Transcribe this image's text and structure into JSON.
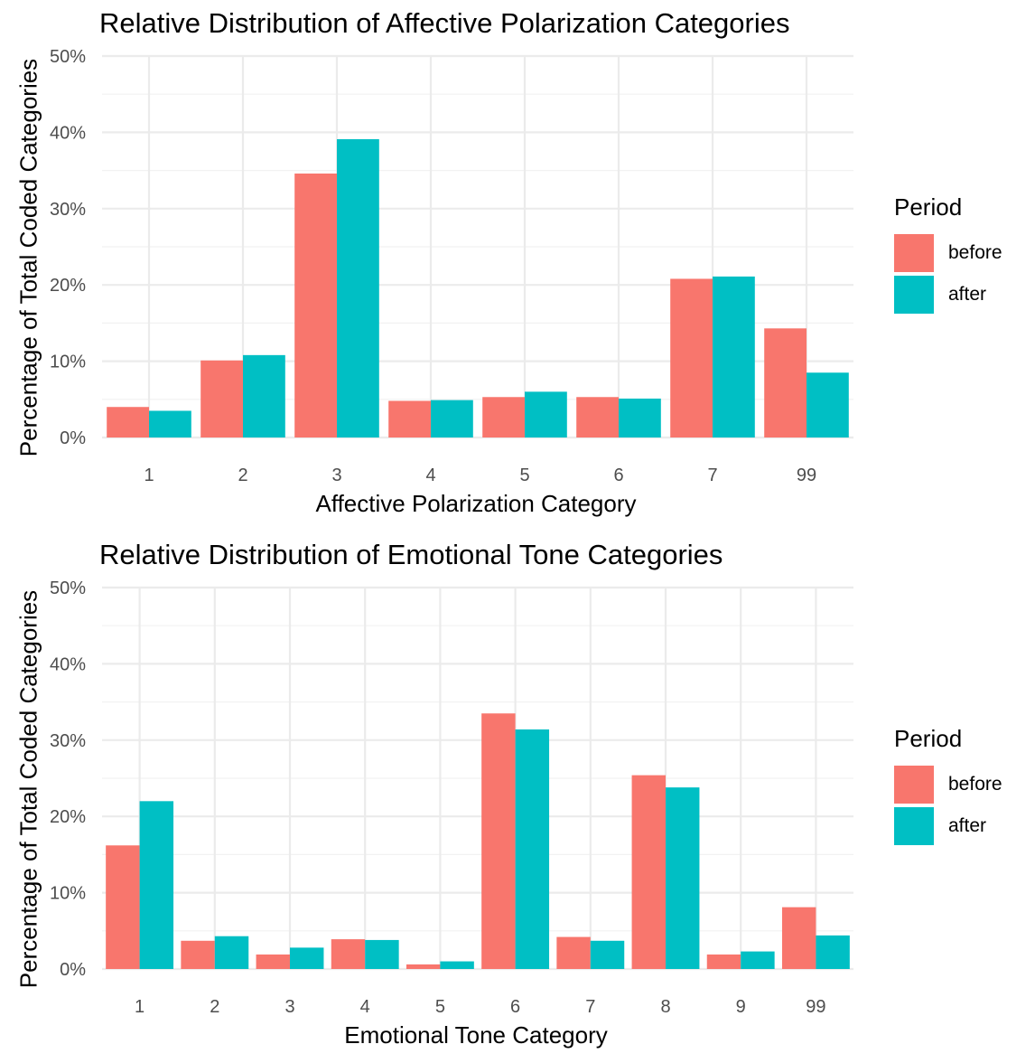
{
  "colors": {
    "before": "#F8766D",
    "after": "#00BFC4",
    "grid_major": "#EBEBEB",
    "grid_minor": "#F2F2F2",
    "tick_text": "#4D4D4D"
  },
  "chart_data": [
    {
      "type": "bar",
      "title": "Relative Distribution of Affective Polarization Categories",
      "xlabel": "Affective Polarization Category",
      "ylabel": "Percentage of Total Coded Categories",
      "ylim": [
        0,
        50
      ],
      "yticks": [
        "0%",
        "10%",
        "20%",
        "30%",
        "40%",
        "50%"
      ],
      "grid": true,
      "legend_position": "right",
      "categories": [
        "1",
        "2",
        "3",
        "4",
        "5",
        "6",
        "7",
        "99"
      ],
      "series": [
        {
          "name": "before",
          "values": [
            4.0,
            10.1,
            34.6,
            4.8,
            5.3,
            5.3,
            20.8,
            14.3
          ]
        },
        {
          "name": "after",
          "values": [
            3.5,
            10.8,
            39.1,
            4.9,
            6.0,
            5.1,
            21.1,
            8.5
          ]
        }
      ]
    },
    {
      "type": "bar",
      "title": "Relative Distribution of Emotional Tone Categories",
      "xlabel": "Emotional Tone Category",
      "ylabel": "Percentage of Total Coded Categories",
      "ylim": [
        0,
        50
      ],
      "yticks": [
        "0%",
        "10%",
        "20%",
        "30%",
        "40%",
        "50%"
      ],
      "grid": true,
      "legend_position": "right",
      "categories": [
        "1",
        "2",
        "3",
        "4",
        "5",
        "6",
        "7",
        "8",
        "9",
        "99"
      ],
      "series": [
        {
          "name": "before",
          "values": [
            16.2,
            3.7,
            1.9,
            3.9,
            0.6,
            33.5,
            4.2,
            25.4,
            1.9,
            8.1
          ]
        },
        {
          "name": "after",
          "values": [
            22.0,
            4.3,
            2.8,
            3.8,
            1.0,
            31.4,
            3.7,
            23.8,
            2.3,
            4.4
          ]
        }
      ]
    }
  ],
  "legend": {
    "title": "Period",
    "items": [
      "before",
      "after"
    ]
  }
}
